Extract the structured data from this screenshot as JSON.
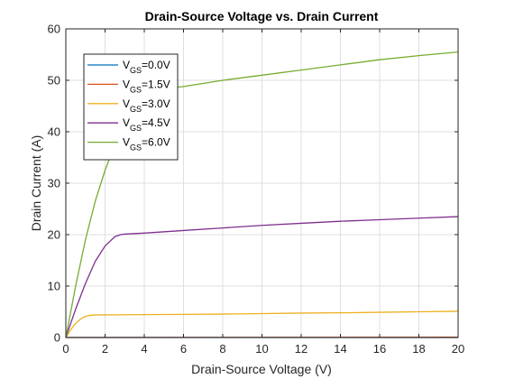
{
  "chart_data": {
    "type": "line",
    "title": "Drain-Source Voltage vs. Drain Current",
    "xlabel": "Drain-Source Voltage (V)",
    "ylabel": "Drain Current (A)",
    "xlim": [
      0,
      20
    ],
    "ylim": [
      0,
      60
    ],
    "xticks": [
      0,
      2,
      4,
      6,
      8,
      10,
      12,
      14,
      16,
      18,
      20
    ],
    "yticks": [
      0,
      10,
      20,
      30,
      40,
      50,
      60
    ],
    "grid": true,
    "legend_position": "top-left",
    "series": [
      {
        "name": "V_GS=0.0V",
        "label_main": "V",
        "label_sub": "GS",
        "label_rest": "=0.0V",
        "color": "#0072BD",
        "x": [
          0,
          20
        ],
        "y": [
          0,
          0
        ]
      },
      {
        "name": "V_GS=1.5V",
        "label_main": "V",
        "label_sub": "GS",
        "label_rest": "=1.5V",
        "color": "#D95319",
        "x": [
          0,
          20
        ],
        "y": [
          0,
          0.05
        ]
      },
      {
        "name": "V_GS=3.0V",
        "label_main": "V",
        "label_sub": "GS",
        "label_rest": "=3.0V",
        "color": "#EDB120",
        "x": [
          0,
          0.2,
          0.4,
          0.6,
          0.8,
          1.0,
          1.2,
          1.4,
          1.6,
          2,
          4,
          6,
          8,
          10,
          12,
          14,
          16,
          18,
          20
        ],
        "y": [
          0,
          1.2,
          2.3,
          3.1,
          3.7,
          4.1,
          4.3,
          4.35,
          4.4,
          4.4,
          4.45,
          4.5,
          4.55,
          4.65,
          4.75,
          4.8,
          4.9,
          5.0,
          5.1
        ]
      },
      {
        "name": "V_GS=4.5V",
        "label_main": "V",
        "label_sub": "GS",
        "label_rest": "=4.5V",
        "color": "#7E2F8E",
        "x": [
          0,
          0.5,
          1.0,
          1.5,
          2.0,
          2.5,
          2.8,
          3.0,
          4,
          6,
          8,
          10,
          12,
          14,
          16,
          18,
          20
        ],
        "y": [
          0,
          5.5,
          10.5,
          14.8,
          17.8,
          19.6,
          20.0,
          20.1,
          20.3,
          20.8,
          21.3,
          21.8,
          22.2,
          22.6,
          22.9,
          23.2,
          23.5
        ]
      },
      {
        "name": "V_GS=6.0V",
        "label_main": "V",
        "label_sub": "GS",
        "label_rest": "=6.0V",
        "color": "#77AC30",
        "x": [
          0,
          0.5,
          1.0,
          1.5,
          2.0,
          2.5,
          3.0,
          3.5,
          4.0,
          4.5,
          5.0,
          5.5,
          6,
          8,
          10,
          12,
          14,
          16,
          18,
          20
        ],
        "y": [
          0,
          10,
          19,
          26.5,
          32.5,
          37.5,
          41.5,
          44.5,
          46.5,
          47.7,
          48.3,
          48.6,
          48.8,
          50.0,
          51.0,
          52.0,
          53.0,
          54.0,
          54.8,
          55.5
        ]
      }
    ]
  }
}
